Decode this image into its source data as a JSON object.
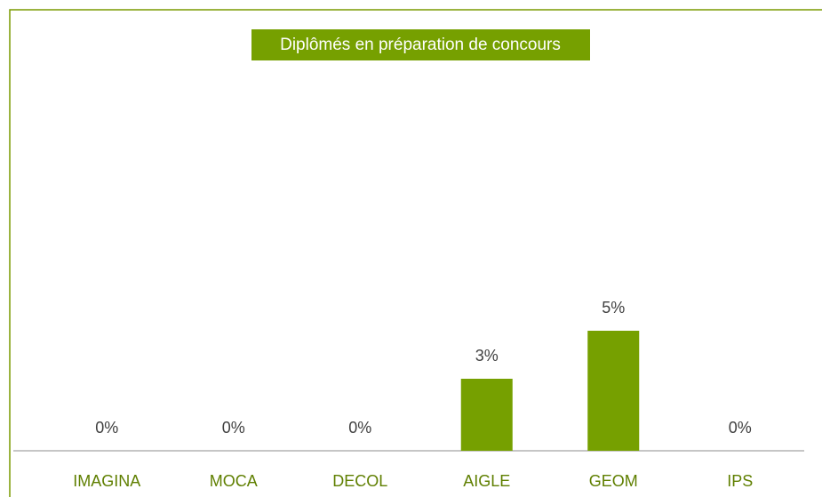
{
  "chart_data": {
    "type": "bar",
    "title": "Diplômés en préparation de concours",
    "categories": [
      "IMAGINA",
      "MOCA",
      "DECOL",
      "AIGLE",
      "GEOM",
      "IPS"
    ],
    "values": [
      0,
      0,
      0,
      3,
      5,
      0
    ],
    "value_labels": [
      "0%",
      "0%",
      "0%",
      "3%",
      "5%",
      "0%"
    ],
    "color": "#76a000"
  }
}
